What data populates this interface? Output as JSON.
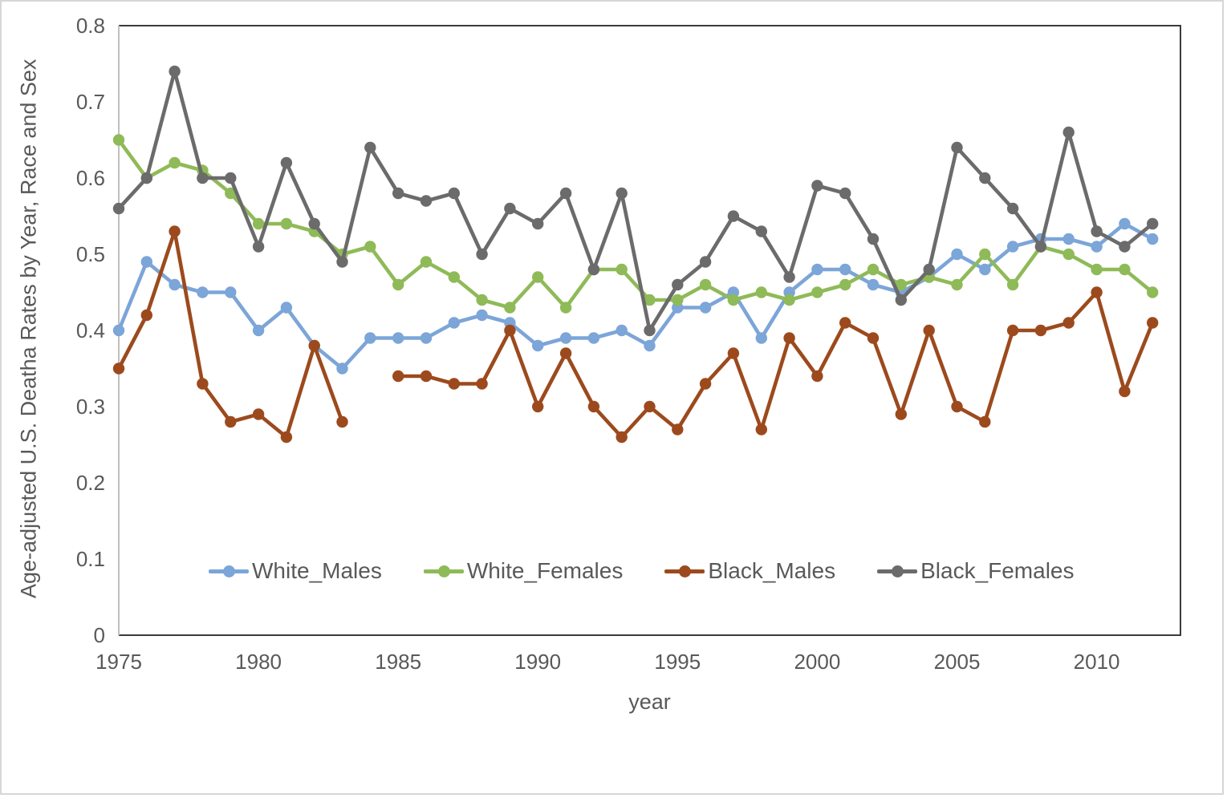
{
  "figure": {
    "ylabel": "Age-adjusted U.S. Deatha Rates by Year, Race and Sex",
    "xlabel": "year"
  },
  "style": {
    "text_color": "#595959",
    "plot_border_color": "#3b3b3b",
    "y_axis_line_color": "#c0c0c0",
    "figure_border_color": "#d6d6d6",
    "background": "#ffffff"
  },
  "chart_data": {
    "type": "line",
    "title": "",
    "xlabel": "year",
    "ylabel": "Age-adjusted U.S. Deatha Rates by Year, Race and Sex",
    "x": [
      1975,
      1976,
      1977,
      1978,
      1979,
      1980,
      1981,
      1982,
      1983,
      1984,
      1985,
      1986,
      1987,
      1988,
      1989,
      1990,
      1991,
      1992,
      1993,
      1994,
      1995,
      1996,
      1997,
      1998,
      1999,
      2000,
      2001,
      2002,
      2003,
      2004,
      2005,
      2006,
      2007,
      2008,
      2009,
      2010,
      2011,
      2012
    ],
    "xticks": [
      1975,
      1980,
      1985,
      1990,
      1995,
      2000,
      2005,
      2010
    ],
    "yticks": [
      "0",
      "0.1",
      "0.2",
      "0.3",
      "0.4",
      "0.5",
      "0.6",
      "0.7",
      "0.8"
    ],
    "ylim": [
      0,
      0.8
    ],
    "grid": false,
    "legend_position": "inside-bottom",
    "marker": "circle",
    "series": [
      {
        "name": "White_Males",
        "color": "#7CA5D8",
        "values": [
          0.4,
          0.49,
          0.46,
          0.45,
          0.45,
          0.4,
          0.43,
          0.38,
          0.35,
          0.39,
          0.39,
          0.39,
          0.41,
          0.42,
          0.41,
          0.38,
          0.39,
          0.39,
          0.4,
          0.38,
          0.43,
          0.43,
          0.45,
          0.39,
          0.45,
          0.48,
          0.48,
          0.46,
          0.45,
          0.47,
          0.5,
          0.48,
          0.51,
          0.52,
          0.52,
          0.51,
          0.54,
          0.52
        ]
      },
      {
        "name": "White_Females",
        "color": "#8FBA58",
        "values": [
          0.65,
          0.6,
          0.62,
          0.61,
          0.58,
          0.54,
          0.54,
          0.53,
          0.5,
          0.51,
          0.46,
          0.49,
          0.47,
          0.44,
          0.43,
          0.47,
          0.43,
          0.48,
          0.48,
          0.44,
          0.44,
          0.46,
          0.44,
          0.45,
          0.44,
          0.45,
          0.46,
          0.48,
          0.46,
          0.47,
          0.46,
          0.5,
          0.46,
          0.51,
          0.5,
          0.48,
          0.48,
          0.45
        ]
      },
      {
        "name": "Black_Males",
        "color": "#9C4A1D",
        "values": [
          0.35,
          0.42,
          0.53,
          0.33,
          0.28,
          0.29,
          0.26,
          0.38,
          0.28,
          null,
          0.34,
          0.34,
          0.33,
          0.33,
          0.4,
          0.3,
          0.37,
          0.3,
          0.26,
          0.3,
          0.27,
          0.33,
          0.37,
          0.27,
          0.39,
          0.34,
          0.41,
          0.39,
          0.29,
          0.4,
          0.3,
          0.28,
          0.4,
          0.4,
          0.41,
          0.45,
          0.32,
          0.41
        ]
      },
      {
        "name": "Black_Females",
        "color": "#6B6B6B",
        "values": [
          0.56,
          0.6,
          0.74,
          0.6,
          0.6,
          0.51,
          0.62,
          0.54,
          0.49,
          0.64,
          0.58,
          0.57,
          0.58,
          0.5,
          0.56,
          0.54,
          0.58,
          0.48,
          0.58,
          0.4,
          0.46,
          0.49,
          0.55,
          0.53,
          0.47,
          0.59,
          0.58,
          0.52,
          0.44,
          0.48,
          0.64,
          0.6,
          0.56,
          0.51,
          0.66,
          0.53,
          0.51,
          0.54
        ]
      }
    ]
  }
}
